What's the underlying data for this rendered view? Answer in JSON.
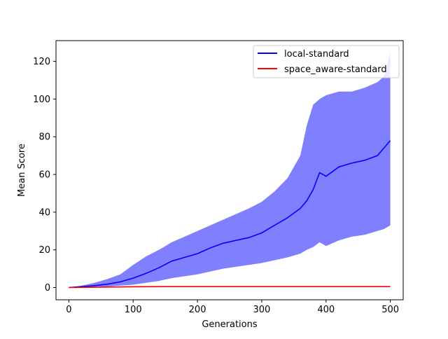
{
  "chart_data": {
    "type": "line",
    "title": "",
    "xlabel": "Generations",
    "ylabel": "Mean Score",
    "xlim": [
      -20,
      520
    ],
    "ylim": [
      -6.5,
      131
    ],
    "xticks": [
      0,
      100,
      200,
      300,
      400,
      500
    ],
    "yticks": [
      0,
      20,
      40,
      60,
      80,
      100,
      120
    ],
    "grid": false,
    "legend_position": "top-right",
    "series": [
      {
        "name": "local-standard",
        "color": "#0000ff",
        "band_color": "#8080ff",
        "x": [
          0,
          20,
          40,
          60,
          80,
          100,
          120,
          140,
          160,
          180,
          200,
          220,
          240,
          260,
          280,
          300,
          320,
          340,
          360,
          370,
          380,
          390,
          400,
          420,
          440,
          460,
          480,
          490,
          500
        ],
        "y": [
          0,
          0.5,
          1,
          1.8,
          3,
          5,
          7.5,
          10.5,
          14,
          16,
          18,
          21,
          23.5,
          25,
          26.5,
          29,
          33,
          37,
          42,
          46,
          52,
          61,
          59,
          64,
          66,
          67.5,
          70,
          74,
          78
        ],
        "upper": [
          0,
          1,
          2.5,
          4.5,
          7,
          12,
          16.5,
          20,
          24,
          27,
          30,
          33,
          36,
          39,
          42,
          45.5,
          51,
          58,
          70,
          86,
          97,
          100,
          102,
          104,
          104,
          106,
          109,
          112,
          125
        ],
        "lower": [
          0,
          0,
          0,
          0.5,
          1,
          1.5,
          2.5,
          3.5,
          5,
          6,
          7,
          8.5,
          10,
          11,
          12,
          13,
          14.5,
          16,
          18,
          20,
          21.5,
          24,
          22,
          25,
          27,
          28,
          30,
          31,
          33
        ]
      },
      {
        "name": "space_aware-standard",
        "color": "#ff0000",
        "x": [
          0,
          50,
          100,
          150,
          200,
          250,
          300,
          350,
          400,
          450,
          500
        ],
        "y": [
          0,
          0.2,
          0.4,
          0.5,
          0.5,
          0.5,
          0.5,
          0.5,
          0.5,
          0.5,
          0.5
        ]
      }
    ]
  }
}
